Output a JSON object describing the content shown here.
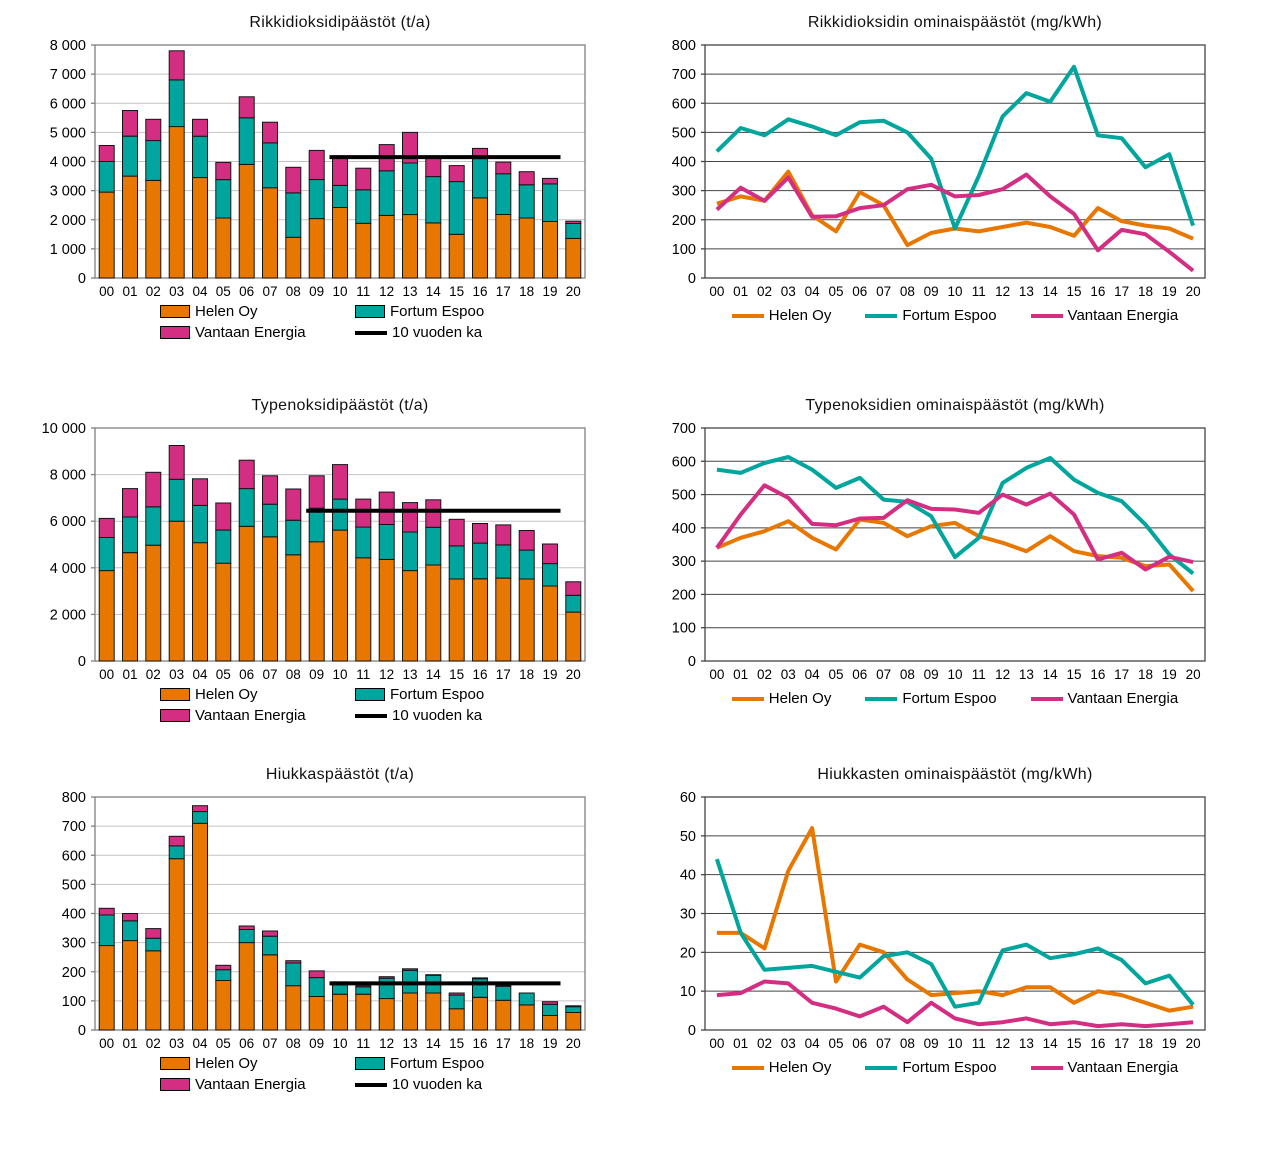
{
  "page": {
    "background": "#ffffff"
  },
  "colors": {
    "helen_oy": "#E87700",
    "fortum_espoo": "#00A69D",
    "vantaan_energia": "#D42E83",
    "avg_line": "#000000",
    "grid_light": "#c3c3c3",
    "grid_dark": "#454545",
    "border_light": "#7f7f7f",
    "border_dark": "#454545"
  },
  "chart_data": [
    {
      "id": "so2-emissions",
      "type": "stacked-bar",
      "title": "Rikkidioksidipäästöt (t/a)",
      "unit": "t/a",
      "grid": "light",
      "ymax": 8000,
      "ystep": 1000,
      "ytick_labels": [
        "0",
        "1 000",
        "2 000",
        "3 000",
        "4 000",
        "5 000",
        "6 000",
        "7 000",
        "8 000"
      ],
      "categories": [
        "00",
        "01",
        "02",
        "03",
        "04",
        "05",
        "06",
        "07",
        "08",
        "09",
        "10",
        "11",
        "12",
        "13",
        "14",
        "15",
        "16",
        "17",
        "18",
        "19",
        "20"
      ],
      "series": [
        {
          "name": "Helen Oy",
          "color": "helen_oy",
          "values": [
            2950,
            3500,
            3350,
            5200,
            3450,
            2060,
            3900,
            3100,
            1400,
            2040,
            2420,
            1880,
            2150,
            2180,
            1890,
            1500,
            2750,
            2180,
            2060,
            1940,
            1360
          ]
        },
        {
          "name": "Fortum Espoo",
          "color": "fortum_espoo",
          "values": [
            1050,
            1370,
            1370,
            1600,
            1420,
            1320,
            1600,
            1540,
            1520,
            1340,
            760,
            1150,
            1530,
            1770,
            1590,
            1810,
            1350,
            1400,
            1140,
            1290,
            510
          ]
        },
        {
          "name": "Vantaan Energia",
          "color": "vantaan_energia",
          "values": [
            550,
            880,
            730,
            1000,
            580,
            590,
            720,
            710,
            880,
            1000,
            950,
            740,
            900,
            1050,
            660,
            550,
            350,
            400,
            450,
            190,
            80
          ]
        }
      ],
      "avg_line": {
        "name": "10 vuoden ka",
        "value": 4150,
        "from": "10",
        "to": "19",
        "color": "avg_line"
      }
    },
    {
      "id": "so2-specific-emissions",
      "type": "line",
      "title": "Rikkidioksidin ominaispäästöt (mg/kWh)",
      "unit": "mg/kWh",
      "grid": "dark",
      "ymax": 800,
      "ystep": 100,
      "ytick_labels": [
        "0",
        "100",
        "200",
        "300",
        "400",
        "500",
        "600",
        "700",
        "800"
      ],
      "categories": [
        "00",
        "01",
        "02",
        "03",
        "04",
        "05",
        "06",
        "07",
        "08",
        "09",
        "10",
        "11",
        "12",
        "13",
        "14",
        "15",
        "16",
        "17",
        "18",
        "19",
        "20"
      ],
      "series": [
        {
          "name": "Helen Oy",
          "color": "helen_oy",
          "values": [
            255,
            280,
            265,
            365,
            215,
            160,
            295,
            250,
            113,
            155,
            170,
            160,
            175,
            190,
            175,
            145,
            240,
            195,
            180,
            170,
            135
          ]
        },
        {
          "name": "Fortum Espoo",
          "color": "fortum_espoo",
          "values": [
            435,
            515,
            490,
            545,
            520,
            490,
            535,
            540,
            500,
            410,
            170,
            350,
            555,
            635,
            605,
            725,
            490,
            480,
            380,
            425,
            180
          ]
        },
        {
          "name": "Vantaan Energia",
          "color": "vantaan_energia",
          "values": [
            235,
            310,
            265,
            345,
            210,
            212,
            240,
            250,
            305,
            320,
            280,
            285,
            305,
            355,
            280,
            220,
            95,
            165,
            150,
            90,
            25
          ]
        }
      ]
    },
    {
      "id": "nox-emissions",
      "type": "stacked-bar",
      "title": "Typenoksidipäästöt (t/a)",
      "unit": "t/a",
      "grid": "light",
      "ymax": 10000,
      "ystep": 2000,
      "ytick_labels": [
        "0",
        "2 000",
        "4 000",
        "6 000",
        "8 000",
        "10 000"
      ],
      "categories": [
        "00",
        "01",
        "02",
        "03",
        "04",
        "05",
        "06",
        "07",
        "08",
        "09",
        "10",
        "11",
        "12",
        "13",
        "14",
        "15",
        "16",
        "17",
        "18",
        "19",
        "20"
      ],
      "series": [
        {
          "name": "Helen Oy",
          "color": "helen_oy",
          "values": [
            3880,
            4650,
            4970,
            6000,
            5080,
            4200,
            5780,
            5330,
            4560,
            5120,
            5620,
            4430,
            4360,
            3880,
            4120,
            3520,
            3530,
            3560,
            3520,
            3220,
            2100
          ]
        },
        {
          "name": "Fortum Espoo",
          "color": "fortum_espoo",
          "values": [
            1420,
            1530,
            1650,
            1800,
            1600,
            1420,
            1620,
            1400,
            1480,
            1440,
            1330,
            1320,
            1500,
            1660,
            1620,
            1420,
            1530,
            1420,
            1240,
            960,
            720
          ]
        },
        {
          "name": "Vantaan Energia",
          "color": "vantaan_energia",
          "values": [
            820,
            1220,
            1480,
            1450,
            1140,
            1160,
            1220,
            1220,
            1340,
            1390,
            1480,
            1200,
            1390,
            1260,
            1180,
            1140,
            840,
            860,
            840,
            840,
            580
          ]
        }
      ],
      "avg_line": {
        "name": "10 vuoden ka",
        "value": 6450,
        "from": "09",
        "to": "19",
        "color": "avg_line"
      }
    },
    {
      "id": "nox-specific-emissions",
      "type": "line",
      "title": "Typenoksidien ominaispäästöt (mg/kWh)",
      "unit": "mg/kWh",
      "grid": "dark",
      "ymax": 700,
      "ystep": 100,
      "ytick_labels": [
        "0",
        "100",
        "200",
        "300",
        "400",
        "500",
        "600",
        "700"
      ],
      "categories": [
        "00",
        "01",
        "02",
        "03",
        "04",
        "05",
        "06",
        "07",
        "08",
        "09",
        "10",
        "11",
        "12",
        "13",
        "14",
        "15",
        "16",
        "17",
        "18",
        "19",
        "20"
      ],
      "series": [
        {
          "name": "Helen Oy",
          "color": "helen_oy",
          "values": [
            340,
            370,
            390,
            420,
            370,
            335,
            425,
            415,
            375,
            405,
            415,
            375,
            355,
            330,
            375,
            330,
            315,
            310,
            285,
            290,
            210
          ]
        },
        {
          "name": "Fortum Espoo",
          "color": "fortum_espoo",
          "values": [
            575,
            565,
            595,
            613,
            575,
            520,
            550,
            485,
            478,
            435,
            312,
            370,
            535,
            580,
            610,
            545,
            505,
            480,
            410,
            320,
            263
          ]
        },
        {
          "name": "Vantaan Energia",
          "color": "vantaan_energia",
          "values": [
            340,
            440,
            528,
            490,
            412,
            408,
            428,
            430,
            483,
            457,
            455,
            445,
            500,
            470,
            503,
            440,
            305,
            325,
            275,
            313,
            297
          ]
        }
      ]
    },
    {
      "id": "particulate-emissions",
      "type": "stacked-bar",
      "title": "Hiukkaspäästöt (t/a)",
      "unit": "t/a",
      "grid": "light",
      "ymax": 800,
      "ystep": 100,
      "ytick_labels": [
        "0",
        "100",
        "200",
        "300",
        "400",
        "500",
        "600",
        "700",
        "800"
      ],
      "categories": [
        "00",
        "01",
        "02",
        "03",
        "04",
        "05",
        "06",
        "07",
        "08",
        "09",
        "10",
        "11",
        "12",
        "13",
        "14",
        "15",
        "16",
        "17",
        "18",
        "19",
        "20"
      ],
      "series": [
        {
          "name": "Helen Oy",
          "color": "helen_oy",
          "values": [
            290,
            307,
            272,
            588,
            710,
            170,
            300,
            258,
            152,
            115,
            123,
            123,
            108,
            127,
            127,
            73,
            112,
            102,
            86,
            50,
            60
          ]
        },
        {
          "name": "Fortum Espoo",
          "color": "fortum_espoo",
          "values": [
            105,
            68,
            43,
            44,
            40,
            37,
            45,
            64,
            78,
            65,
            32,
            25,
            70,
            78,
            61,
            47,
            64,
            48,
            41,
            38,
            20
          ]
        },
        {
          "name": "Vantaan Energia",
          "color": "vantaan_energia",
          "values": [
            23,
            25,
            33,
            33,
            20,
            15,
            12,
            18,
            8,
            23,
            10,
            4,
            5,
            5,
            2,
            7,
            3,
            3,
            0,
            9,
            3
          ]
        }
      ],
      "avg_line": {
        "name": "10 vuoden ka",
        "value": 160,
        "from": "10",
        "to": "19",
        "color": "avg_line"
      }
    },
    {
      "id": "particulate-specific-emissions",
      "type": "line",
      "title": "Hiukkasten ominaispäästöt (mg/kWh)",
      "unit": "mg/kWh",
      "grid": "dark",
      "ymax": 60,
      "ystep": 10,
      "ytick_labels": [
        "0",
        "10",
        "20",
        "30",
        "40",
        "50",
        "60"
      ],
      "categories": [
        "00",
        "01",
        "02",
        "03",
        "04",
        "05",
        "06",
        "07",
        "08",
        "09",
        "10",
        "11",
        "12",
        "13",
        "14",
        "15",
        "16",
        "17",
        "18",
        "19",
        "20"
      ],
      "series": [
        {
          "name": "Helen Oy",
          "color": "helen_oy",
          "values": [
            25,
            25,
            21,
            41,
            52,
            12.5,
            22,
            20,
            13,
            9,
            9.5,
            10,
            9,
            11,
            11,
            7,
            10,
            9,
            7,
            5,
            6
          ]
        },
        {
          "name": "Fortum Espoo",
          "color": "fortum_espoo",
          "values": [
            44,
            25,
            15.5,
            16,
            16.5,
            15,
            13.5,
            19,
            20,
            17,
            6,
            7,
            20.5,
            22,
            18.5,
            19.5,
            21,
            18,
            12,
            14,
            6.5
          ]
        },
        {
          "name": "Vantaan Energia",
          "color": "vantaan_energia",
          "values": [
            9,
            9.5,
            12.5,
            12,
            7,
            5.5,
            3.5,
            6,
            2,
            7,
            3,
            1.5,
            2,
            3,
            1.5,
            2,
            1,
            1.5,
            1,
            1.5,
            2
          ]
        }
      ]
    }
  ]
}
